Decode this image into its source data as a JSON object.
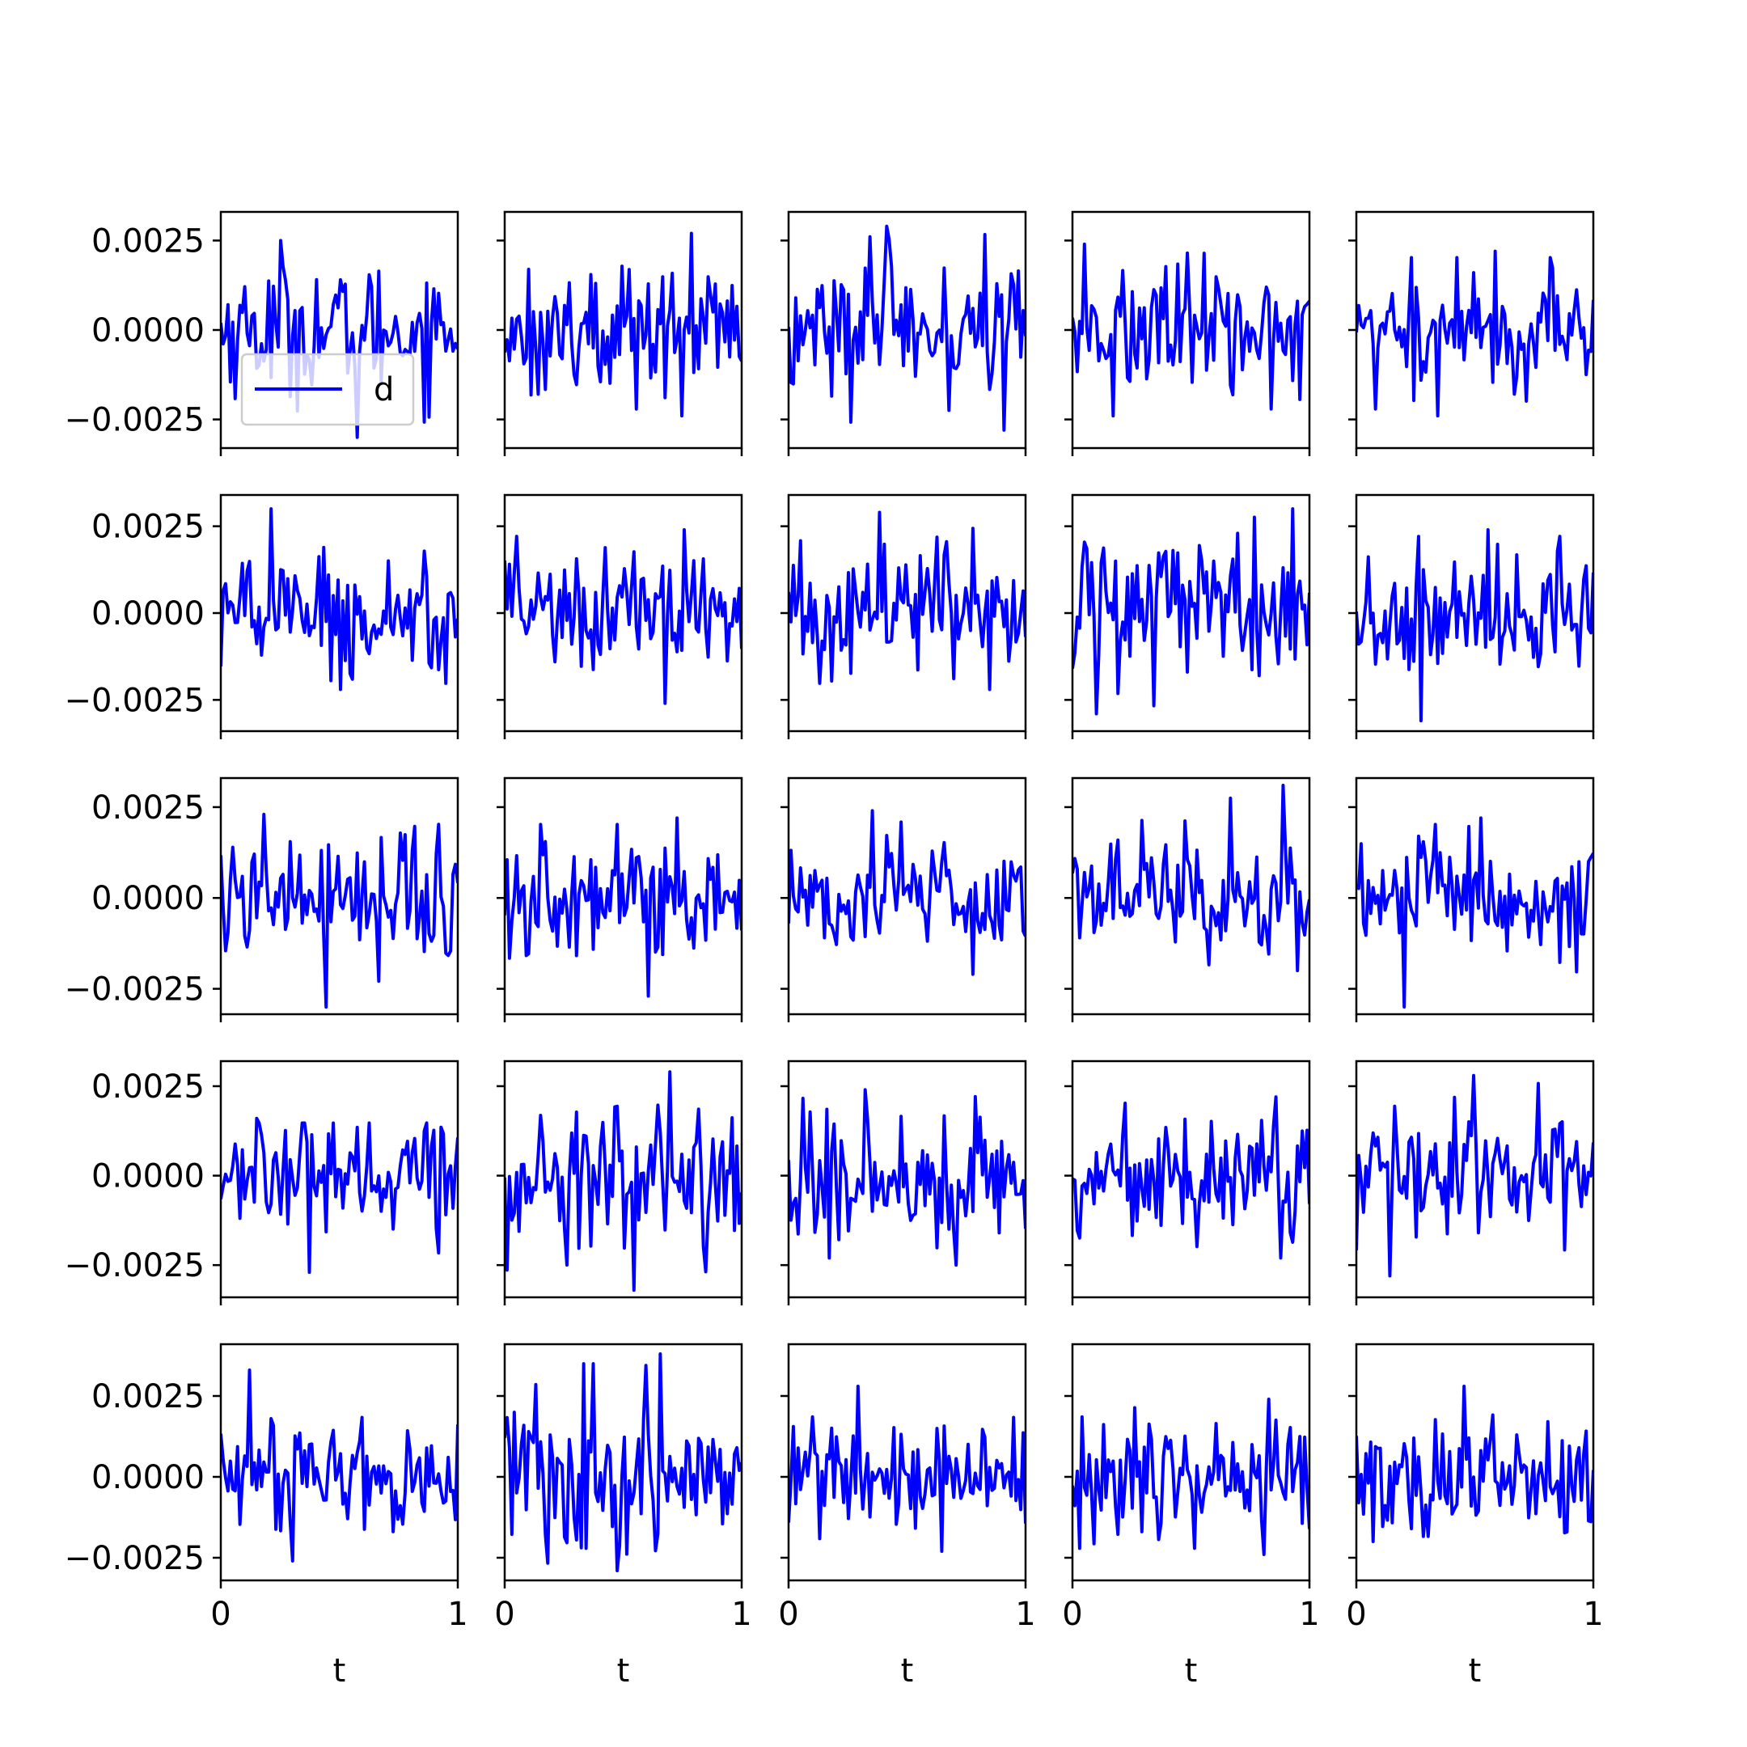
{
  "figure": {
    "rows": 5,
    "cols": 5,
    "line_color": "#0000ff",
    "background": "#ffffff",
    "xlabel": "t",
    "x_tick_labels": [
      "0",
      "1"
    ],
    "legend": {
      "label": "d",
      "placement": "lower-left of first subplot"
    }
  },
  "chart_data": {
    "type": "line",
    "grid": false,
    "xlim": [
      0,
      1
    ],
    "x_ticks": [
      0,
      1
    ],
    "xlabel": "t",
    "legend_entries": [
      "d"
    ],
    "sample_count_per_panel": 100,
    "rows": [
      {
        "ylim": [
          -0.0033,
          0.0033
        ],
        "y_ticks": [
          -0.0025,
          0,
          0.0025
        ],
        "y_tick_labels": [
          "−0.0025",
          "0.0000",
          "0.0025"
        ]
      },
      {
        "ylim": [
          -0.0034,
          0.0034
        ],
        "y_ticks": [
          -0.0025,
          0,
          0.0025
        ],
        "y_tick_labels": [
          "−0.0025",
          "0.0000",
          "0.0025"
        ]
      },
      {
        "ylim": [
          -0.0032,
          0.0033
        ],
        "y_ticks": [
          -0.0025,
          0,
          0.0025
        ],
        "y_tick_labels": [
          "−0.0025",
          "0.0000",
          "0.0025"
        ]
      },
      {
        "ylim": [
          -0.0034,
          0.0032
        ],
        "y_ticks": [
          -0.0025,
          0,
          0.0025
        ],
        "y_tick_labels": [
          "−0.0025",
          "0.0000",
          "0.0025"
        ]
      },
      {
        "ylim": [
          -0.0032,
          0.0041
        ],
        "y_ticks": [
          -0.0025,
          0,
          0.0025
        ],
        "y_tick_labels": [
          "−0.0025",
          "0.0000",
          "0.0025"
        ]
      }
    ],
    "panels": [
      {
        "row": 0,
        "col": 0,
        "series": [
          {
            "name": "d",
            "amplitude": 0.0009,
            "min": -0.003,
            "max": 0.0025
          }
        ]
      },
      {
        "row": 0,
        "col": 1,
        "amplitude": 0.0009,
        "min": -0.0024,
        "max": 0.0027
      },
      {
        "row": 0,
        "col": 2,
        "amplitude": 0.001,
        "min": -0.0028,
        "max": 0.0029
      },
      {
        "row": 0,
        "col": 3,
        "amplitude": 0.0009,
        "min": -0.0024,
        "max": 0.0024
      },
      {
        "row": 0,
        "col": 4,
        "amplitude": 0.0009,
        "min": -0.0024,
        "max": 0.0022
      },
      {
        "row": 1,
        "col": 0,
        "amplitude": 0.0009,
        "min": -0.0022,
        "max": 0.003
      },
      {
        "row": 1,
        "col": 1,
        "amplitude": 0.0009,
        "min": -0.0026,
        "max": 0.0024
      },
      {
        "row": 1,
        "col": 2,
        "amplitude": 0.0009,
        "min": -0.0022,
        "max": 0.0029
      },
      {
        "row": 1,
        "col": 3,
        "amplitude": 0.001,
        "min": -0.0029,
        "max": 0.003
      },
      {
        "row": 1,
        "col": 4,
        "amplitude": 0.0009,
        "min": -0.0031,
        "max": 0.0024
      },
      {
        "row": 2,
        "col": 0,
        "amplitude": 0.0009,
        "min": -0.003,
        "max": 0.0023
      },
      {
        "row": 2,
        "col": 1,
        "amplitude": 0.0009,
        "min": -0.0027,
        "max": 0.0022
      },
      {
        "row": 2,
        "col": 2,
        "amplitude": 0.0008,
        "min": -0.0021,
        "max": 0.0024
      },
      {
        "row": 2,
        "col": 3,
        "amplitude": 0.0009,
        "min": -0.002,
        "max": 0.0031
      },
      {
        "row": 2,
        "col": 4,
        "amplitude": 0.0009,
        "min": -0.003,
        "max": 0.0022
      },
      {
        "row": 3,
        "col": 0,
        "amplitude": 0.0009,
        "min": -0.0027,
        "max": 0.0016
      },
      {
        "row": 3,
        "col": 1,
        "amplitude": 0.001,
        "min": -0.0032,
        "max": 0.0029
      },
      {
        "row": 3,
        "col": 2,
        "amplitude": 0.0009,
        "min": -0.0025,
        "max": 0.0024
      },
      {
        "row": 3,
        "col": 3,
        "amplitude": 0.0009,
        "min": -0.0023,
        "max": 0.0022
      },
      {
        "row": 3,
        "col": 4,
        "amplitude": 0.0009,
        "min": -0.0028,
        "max": 0.0028
      },
      {
        "row": 4,
        "col": 0,
        "amplitude": 0.0009,
        "min": -0.0026,
        "max": 0.0033
      },
      {
        "row": 4,
        "col": 1,
        "amplitude": 0.0011,
        "min": -0.0029,
        "max": 0.0038
      },
      {
        "row": 4,
        "col": 2,
        "amplitude": 0.0009,
        "min": -0.0023,
        "max": 0.0028
      },
      {
        "row": 4,
        "col": 3,
        "amplitude": 0.0009,
        "min": -0.0024,
        "max": 0.0024
      },
      {
        "row": 4,
        "col": 4,
        "amplitude": 0.0009,
        "min": -0.002,
        "max": 0.0028
      }
    ]
  }
}
